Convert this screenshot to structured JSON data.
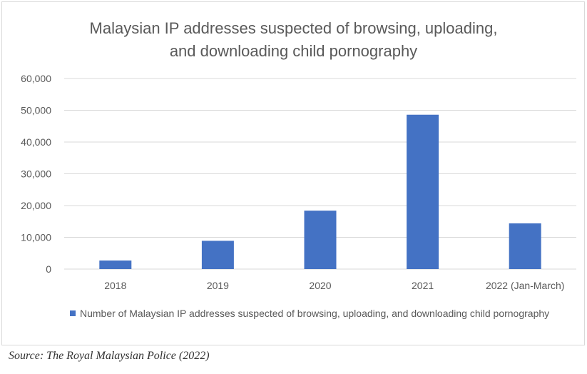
{
  "chart_data": {
    "type": "bar",
    "title": "Malaysian IP addresses suspected of browsing, uploading, and downloading child pornography",
    "title_lines": [
      "Malaysian IP addresses suspected of browsing, uploading,",
      "and downloading child pornography"
    ],
    "categories": [
      "2018",
      "2019",
      "2020",
      "2021",
      "2022 (Jan-March)"
    ],
    "series": [
      {
        "name": "Number of Malaysian IP addresses suspected of browsing, uploading, and downloading child pornography",
        "values": [
          2700,
          8900,
          18400,
          48600,
          14400
        ],
        "color": "#4472c4"
      }
    ],
    "ylim": [
      0,
      60000
    ],
    "yticks": [
      0,
      10000,
      20000,
      30000,
      40000,
      50000,
      60000
    ],
    "ytick_labels": [
      "0",
      "10,000",
      "20,000",
      "30,000",
      "40,000",
      "50,000",
      "60,000"
    ],
    "grid": true,
    "legend_placement": "bottom",
    "xlabel": "",
    "ylabel": ""
  },
  "source": "Source: The Royal Malaysian Police (2022)"
}
